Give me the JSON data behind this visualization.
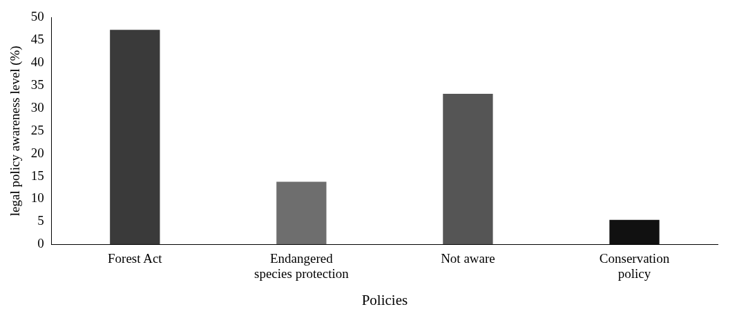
{
  "chart_data": {
    "type": "bar",
    "xlabel": "Policies",
    "ylabel": "legal policy awareness level (%)",
    "categories": [
      "Forest Act",
      "Endangered species protection",
      "Not aware",
      "Conservation policy"
    ],
    "values": [
      47.3,
      13.8,
      33.2,
      5.4
    ],
    "colors": [
      "#3a3a3a",
      "#6e6e6e",
      "#555555",
      "#111111"
    ],
    "ylim": [
      0,
      50
    ],
    "yticks": [
      0,
      5,
      10,
      15,
      20,
      25,
      30,
      35,
      40,
      45,
      50
    ],
    "grid": false,
    "legend": false
  }
}
